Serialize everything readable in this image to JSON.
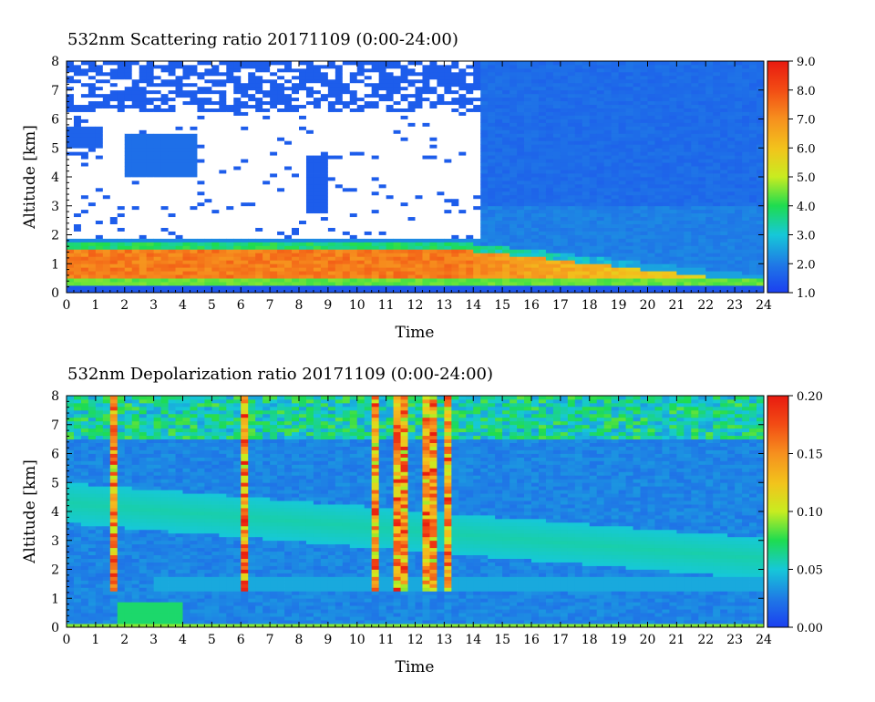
{
  "chart_data": [
    {
      "type": "heatmap",
      "title": "532nm Scattering ratio  20171109 (0:00-24:00)",
      "xlabel": "Time",
      "ylabel": "Altitude [km]",
      "xlim": [
        0,
        24
      ],
      "ylim": [
        0,
        8
      ],
      "x_ticks": [
        "0",
        "1",
        "2",
        "3",
        "4",
        "5",
        "6",
        "7",
        "8",
        "9",
        "10",
        "11",
        "12",
        "13",
        "14",
        "15",
        "16",
        "17",
        "18",
        "19",
        "20",
        "21",
        "22",
        "23",
        "24"
      ],
      "y_ticks": [
        "0",
        "1",
        "2",
        "3",
        "4",
        "5",
        "6",
        "7",
        "8"
      ],
      "colorbar": {
        "range": [
          1.0,
          9.0
        ],
        "ticks": [
          "1.0",
          "2.0",
          "3.0",
          "4.0",
          "5.0",
          "6.0",
          "7.0",
          "8.0",
          "9.0"
        ]
      },
      "features": [
        {
          "kind": "surface_boundary_layer",
          "time": [
            0,
            14
          ],
          "altitude": [
            0.3,
            1.7
          ],
          "value": 7.5
        },
        {
          "kind": "boundary_layer_decay",
          "time": [
            14,
            24
          ],
          "altitude_top_start": 1.4,
          "altitude_top_end": 0.6,
          "value_start": 7.0,
          "value_end": 5.0
        },
        {
          "kind": "background",
          "value": 1.6
        },
        {
          "kind": "missing_clouds",
          "time": [
            0,
            14.3
          ],
          "altitude": [
            1.8,
            8
          ]
        }
      ]
    },
    {
      "type": "heatmap",
      "title": "532nm Depolarization ratio  20171109 (0:00-24:00)",
      "xlabel": "Time",
      "ylabel": "Altitude [km]",
      "xlim": [
        0,
        24
      ],
      "ylim": [
        0,
        8
      ],
      "x_ticks": [
        "0",
        "1",
        "2",
        "3",
        "4",
        "5",
        "6",
        "7",
        "8",
        "9",
        "10",
        "11",
        "12",
        "13",
        "14",
        "15",
        "16",
        "17",
        "18",
        "19",
        "20",
        "21",
        "22",
        "23",
        "24"
      ],
      "y_ticks": [
        "0",
        "1",
        "2",
        "3",
        "4",
        "5",
        "6",
        "7",
        "8"
      ],
      "colorbar": {
        "range": [
          0.0,
          0.2
        ],
        "ticks": [
          "0.00",
          "0.05",
          "0.10",
          "0.15",
          "0.20"
        ]
      },
      "features": [
        {
          "kind": "background",
          "value": 0.03
        },
        {
          "kind": "dust_layer",
          "time_start": 0,
          "time_end": 24,
          "center_start": 4.3,
          "center_end": 2.4,
          "value": 0.055
        },
        {
          "kind": "cloud_streaks",
          "times": [
            1.6,
            6.2,
            10.6,
            11.4,
            11.6,
            12.5,
            13.1
          ],
          "value": 0.16
        },
        {
          "kind": "near_surface_patch",
          "time": [
            1.8,
            4
          ],
          "altitude": [
            0.1,
            0.9
          ],
          "value": 0.07
        }
      ]
    }
  ]
}
